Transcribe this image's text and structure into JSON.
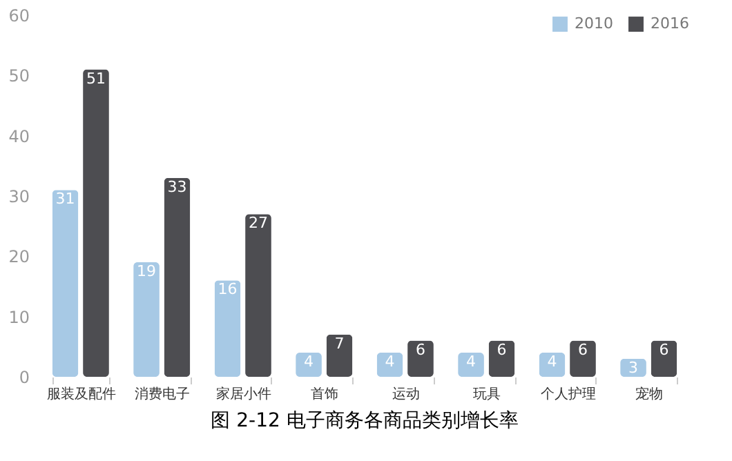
{
  "chart_data": {
    "type": "bar",
    "title": "图 2-12 电子商务各商品类别增长率",
    "categories": [
      "服装及配件",
      "消费电子",
      "家居小件",
      "首饰",
      "运动",
      "玩具",
      "个人护理",
      "宠物"
    ],
    "series": [
      {
        "name": "2010",
        "color": "#a7c9e5",
        "values": [
          31,
          19,
          16,
          4,
          4,
          4,
          4,
          3
        ]
      },
      {
        "name": "2016",
        "color": "#4d4d51",
        "values": [
          51,
          33,
          27,
          7,
          6,
          6,
          6,
          6
        ]
      }
    ],
    "ylim": [
      0,
      60
    ],
    "yticks": [
      0,
      10,
      20,
      30,
      40,
      50,
      60
    ],
    "grid": false,
    "legend": "top right",
    "data_labels": true
  }
}
